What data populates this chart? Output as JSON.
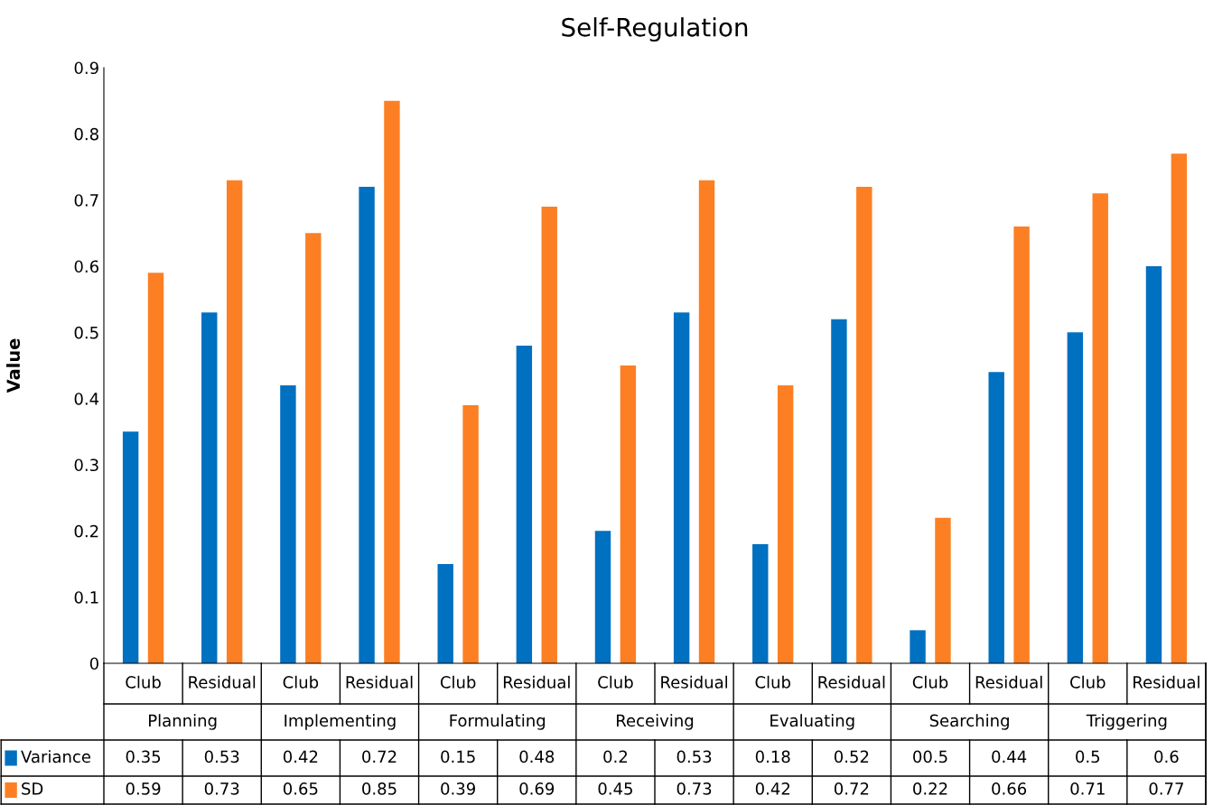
{
  "chart_data": {
    "type": "bar",
    "title": "Self-Regulation",
    "ylabel": "Value",
    "categories": [
      "Club",
      "Residual",
      "Club",
      "Residual",
      "Club",
      "Residual",
      "Club",
      "Residual",
      "Club",
      "Residual",
      "Club",
      "Residual",
      "Club",
      "Residual"
    ],
    "annotations": [
      "Planning",
      "Implementing",
      "Formulating",
      "Receiving",
      "Evaluating",
      "Searching",
      "Triggering",
      "00.5"
    ],
    "series": [
      {
        "name": "Variance",
        "color": "#0070c0",
        "values": [
          0.35,
          0.53,
          0.42,
          0.72,
          0.15,
          0.48,
          0.2,
          0.53,
          0.18,
          0.52,
          0.05,
          0.44,
          0.5,
          0.6
        ],
        "value_labels": [
          "0.35",
          "0.53",
          "0.42",
          "0.72",
          "0.15",
          "0.48",
          "0.2",
          "0.53",
          "0.18",
          "0.52",
          null,
          "0.44",
          "0.5",
          "0.6"
        ]
      },
      {
        "name": "SD",
        "color": "#fd7f23",
        "values": [
          0.59,
          0.73,
          0.65,
          0.85,
          0.39,
          0.69,
          0.45,
          0.73,
          0.42,
          0.72,
          0.22,
          0.66,
          0.71,
          0.77
        ],
        "value_labels": [
          "0.59",
          "0.73",
          "0.65",
          "0.85",
          "0.39",
          "0.69",
          "0.45",
          "0.73",
          "0.42",
          "0.72",
          "0.22",
          "0.66",
          "0.71",
          "0.77"
        ]
      }
    ],
    "ylim": [
      0,
      0.9
    ],
    "yticks": [
      0,
      0.1,
      0.2,
      0.3,
      0.4,
      0.5,
      0.6,
      0.7,
      0.8,
      0.9
    ],
    "grid": false,
    "legend": "bottom left"
  }
}
